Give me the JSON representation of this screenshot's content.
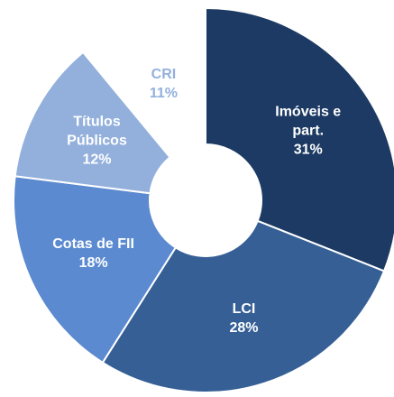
{
  "chart_data": {
    "type": "donut",
    "categories": [
      "Imóveis e part.",
      "LCI",
      "Cotas de FII",
      "Títulos Públicos",
      "CRI"
    ],
    "values": [
      31,
      28,
      18,
      12,
      11
    ],
    "value_labels": [
      "31%",
      "28%",
      "18%",
      "12%",
      "11%"
    ],
    "colors": [
      "#1c3a63",
      "#355f95",
      "#5b8ad0",
      "#93b0dc",
      "#ffffff"
    ],
    "label_colors": [
      "#ffffff",
      "#ffffff",
      "#ffffff",
      "#ffffff",
      "#93b0dc"
    ]
  }
}
